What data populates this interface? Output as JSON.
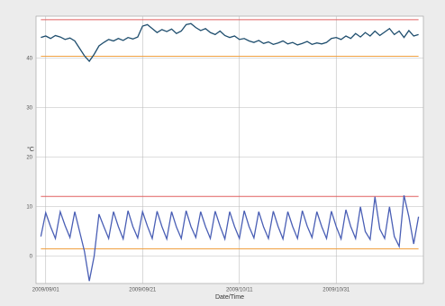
{
  "chart_data": {
    "type": "line",
    "y_label": "°C",
    "x_label": "Date/Time",
    "x": [
      1,
      2,
      3,
      4,
      5,
      6,
      7,
      8,
      9,
      10,
      11,
      12,
      13,
      14,
      15,
      16,
      17,
      18,
      19,
      20,
      21,
      22,
      23,
      24,
      25,
      26,
      27,
      28,
      29,
      30,
      31,
      32,
      33,
      34,
      35,
      36,
      37,
      38,
      39,
      40,
      41,
      42,
      43,
      44,
      45,
      46,
      47,
      48,
      49,
      50,
      51,
      52,
      53,
      54,
      55,
      56,
      57,
      58,
      59,
      60,
      61,
      62,
      63,
      64,
      65,
      66,
      67,
      68,
      69,
      70,
      71,
      72,
      73,
      74,
      75,
      76,
      77,
      78,
      79
    ],
    "series": [
      {
        "color": "#1f4e6e",
        "values": [
          44.2,
          44.5,
          44,
          44.6,
          44.3,
          43.8,
          44.1,
          43.5,
          42,
          40.5,
          39.4,
          40.8,
          42.5,
          43.2,
          43.8,
          43.5,
          44,
          43.6,
          44.2,
          43.9,
          44.3,
          46.5,
          46.8,
          46,
          45.2,
          45.8,
          45.4,
          45.9,
          45,
          45.5,
          46.8,
          47,
          46.2,
          45.6,
          46,
          45.2,
          44.8,
          45.5,
          44.6,
          44.2,
          44.5,
          43.8,
          44,
          43.5,
          43.2,
          43.6,
          43,
          43.3,
          42.8,
          43.1,
          43.5,
          42.9,
          43.2,
          42.7,
          43,
          43.4,
          42.8,
          43.1,
          42.9,
          43.2,
          44,
          44.2,
          43.8,
          44.5,
          44,
          45,
          44.3,
          45.2,
          44.5,
          45.5,
          44.6,
          45.3,
          46,
          44.8,
          45.5,
          44.2,
          45.6,
          44.5,
          44.8
        ]
      },
      {
        "color": "#4a5fb5",
        "values": [
          4,
          8.8,
          6,
          3.6,
          9,
          6.2,
          3.8,
          9,
          5,
          1,
          -5,
          0,
          8.5,
          6,
          3.6,
          9,
          6,
          3.5,
          9.2,
          6,
          3.7,
          9,
          6.1,
          3.6,
          9.1,
          6,
          3.5,
          9,
          5.9,
          3.6,
          9.2,
          6,
          3.8,
          9,
          6,
          3.6,
          9.1,
          6.1,
          3.5,
          9,
          6,
          3.6,
          9.2,
          6,
          3.7,
          9,
          5.9,
          3.6,
          9.1,
          6,
          3.5,
          9,
          6,
          3.6,
          9.2,
          6.1,
          3.8,
          9,
          6,
          3.6,
          9.1,
          6,
          3.5,
          9.4,
          6,
          3.6,
          10,
          5,
          3.4,
          12,
          5.5,
          3.6,
          10,
          4,
          2,
          12.3,
          8,
          2.5,
          8
        ]
      }
    ],
    "reference_lines": [
      {
        "value": 47.8,
        "color": "#e06060"
      },
      {
        "value": 40.4,
        "color": "#f0a040"
      },
      {
        "value": 12.1,
        "color": "#e06060"
      },
      {
        "value": 1.5,
        "color": "#f0a040"
      }
    ],
    "xlim": [
      0,
      80
    ],
    "xticks": [
      {
        "value": 2,
        "label": "2009/09/01"
      },
      {
        "value": 22,
        "label": "2009/09/21"
      },
      {
        "value": 42,
        "label": "2009/10/11"
      },
      {
        "value": 62,
        "label": "2009/10/31"
      }
    ],
    "ylim": [
      -5.5,
      48.5
    ],
    "yticks": [
      0,
      10,
      20,
      30,
      40
    ],
    "grid": true
  }
}
